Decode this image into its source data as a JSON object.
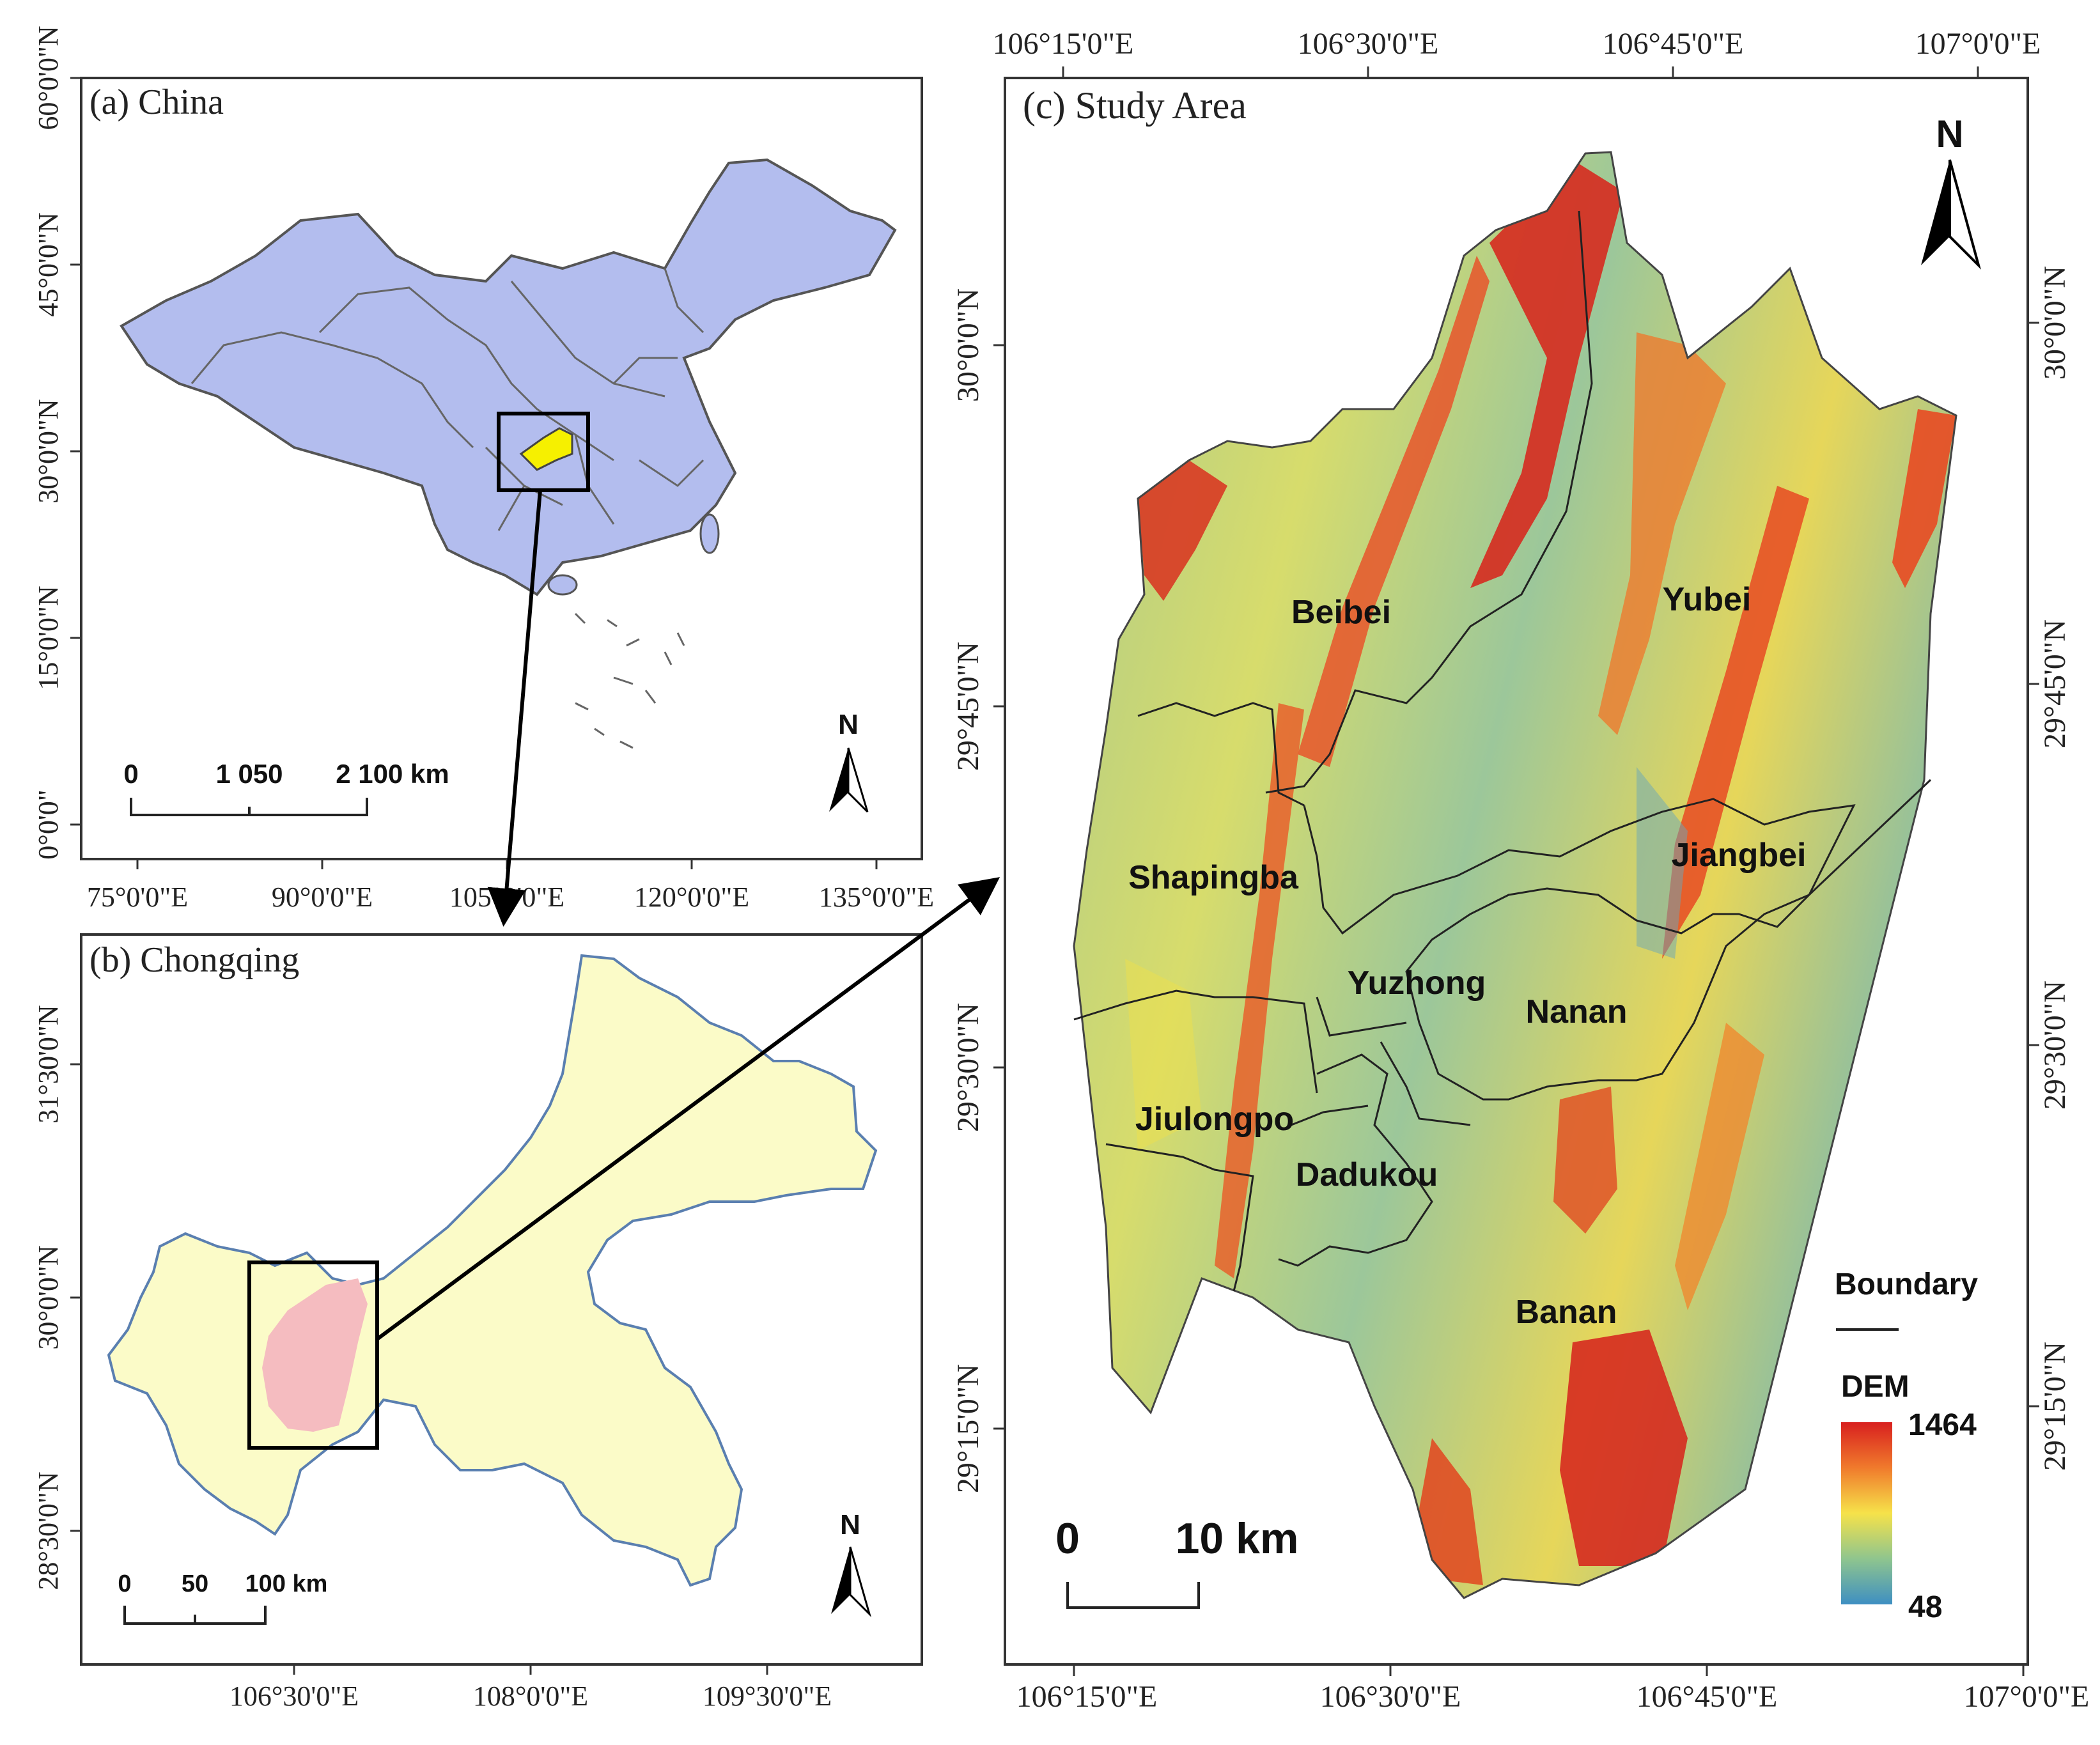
{
  "panels": {
    "china": {
      "title": "(a) China",
      "x_ticks": [
        "75°0'0\"E",
        "90°0'0\"E",
        "105°0'0\"E",
        "120°0'0\"E",
        "135°0'0\"E"
      ],
      "y_ticks": [
        "60°0'0\"N",
        "45°0'0\"N",
        "30°0'0\"N",
        "15°0'0\"N",
        "0°0'0\""
      ],
      "scale_labels": [
        "0",
        "1 050",
        "2 100 km"
      ],
      "north": "N",
      "colors": {
        "land": "#b3bdee",
        "border": "#555555",
        "highlight": "#f6f000"
      }
    },
    "chongqing": {
      "title": "(b) Chongqing",
      "x_ticks": [
        "106°30'0\"E",
        "108°0'0\"E",
        "109°30'0\"E"
      ],
      "y_ticks": [
        "31°30'0\"N",
        "30°0'0\"N",
        "28°30'0\"N"
      ],
      "scale_labels": [
        "0",
        "50",
        "100 km"
      ],
      "north": "N",
      "colors": {
        "land": "#fbfbc8",
        "border": "#5a7fb0",
        "study_area": "#f5bcc0"
      }
    },
    "study_area": {
      "title": "(c) Study Area",
      "x_ticks": [
        "106°15'0\"E",
        "106°30'0\"E",
        "106°45'0\"E",
        "107°0'0\"E"
      ],
      "y_ticks": [
        "30°0'0\"N",
        "29°45'0\"N",
        "29°30'0\"N",
        "29°15'0\"N"
      ],
      "districts": [
        "Beibei",
        "Yubei",
        "Shapingba",
        "Jiangbei",
        "Yuzhong",
        "Nanan",
        "Jiulongpo",
        "Dadukou",
        "Banan"
      ],
      "scale_labels": [
        "0",
        "10 km"
      ],
      "north": "N",
      "legend": {
        "boundary_label": "Boundary",
        "dem_label": "DEM",
        "dem_max": "1464",
        "dem_min": "48",
        "colors": [
          "#d8201f",
          "#f07a2c",
          "#f6e24a",
          "#8fc58e",
          "#3e8fc2"
        ]
      }
    }
  }
}
